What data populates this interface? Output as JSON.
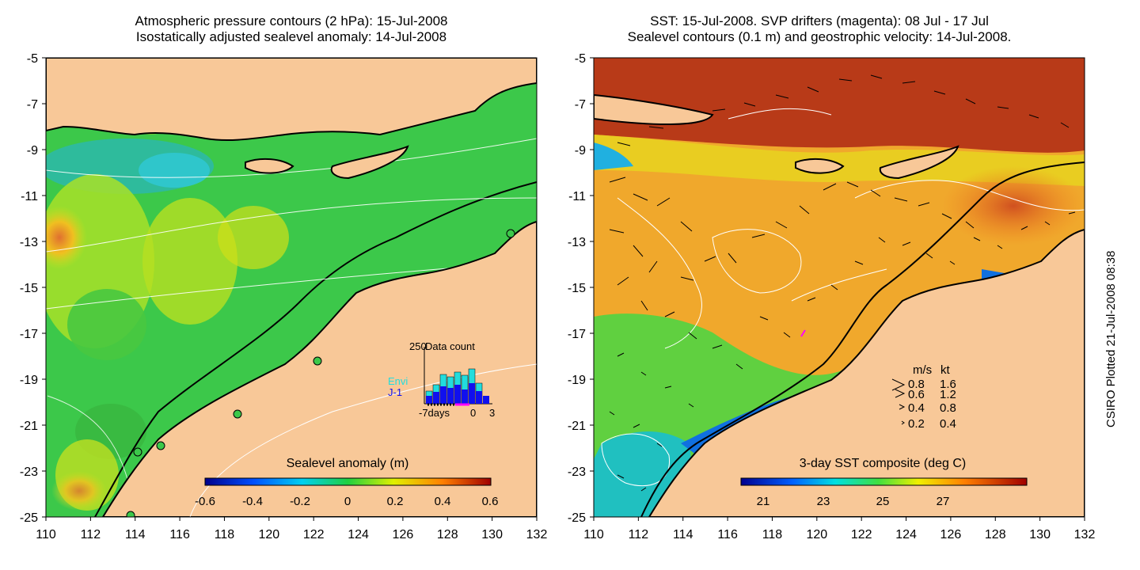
{
  "left_panel": {
    "title_line1": "Atmospheric pressure contours (2 hPa): 15-Jul-2008",
    "title_line2": "Isostatically adjusted sealevel anomaly: 14-Jul-2008",
    "colorbar_label": "Sealevel anomaly (m)",
    "colorbar_ticks": [
      "-0.6",
      "-0.4",
      "-0.2",
      "0",
      "0.2",
      "0.4",
      "0.6"
    ],
    "inset": {
      "title": "Data count",
      "ymax_label": "250",
      "series": [
        {
          "name": "Envi",
          "color": "#22dddd"
        },
        {
          "name": "J-1",
          "color": "#1010ee"
        }
      ],
      "x_labels": [
        "-7days",
        "0",
        "3"
      ]
    }
  },
  "right_panel": {
    "title_line1": "SST: 15-Jul-2008. SVP drifters (magenta): 08 Jul - 17 Jul",
    "title_line2": "Sealevel contours (0.1 m) and geostrophic velocity: 14-Jul-2008.",
    "colorbar_label": "3-day SST composite (deg C)",
    "colorbar_ticks": [
      "21",
      "23",
      "25",
      "27"
    ],
    "legend": {
      "header_ms": "m/s",
      "header_kt": "kt",
      "rows": [
        {
          "ms": "0.8",
          "kt": "1.6"
        },
        {
          "ms": "0.6",
          "kt": "1.2"
        },
        {
          "ms": "0.4",
          "kt": "0.8"
        },
        {
          "ms": "0.2",
          "kt": "0.4"
        }
      ]
    }
  },
  "axes": {
    "lon_ticks": [
      "110",
      "112",
      "114",
      "116",
      "118",
      "120",
      "122",
      "124",
      "126",
      "128",
      "130",
      "132"
    ],
    "lat_ticks": [
      "-5",
      "-7",
      "-9",
      "-11",
      "-13",
      "-15",
      "-17",
      "-19",
      "-21",
      "-23",
      "-25"
    ]
  },
  "credit": "CSIRO Plotted 21-Jul-2008 08:38",
  "colors": {
    "land": "#f8c898",
    "coast": "#000000",
    "sla_bg": "#3cc84a",
    "sst_bg": "#f0a82c"
  }
}
